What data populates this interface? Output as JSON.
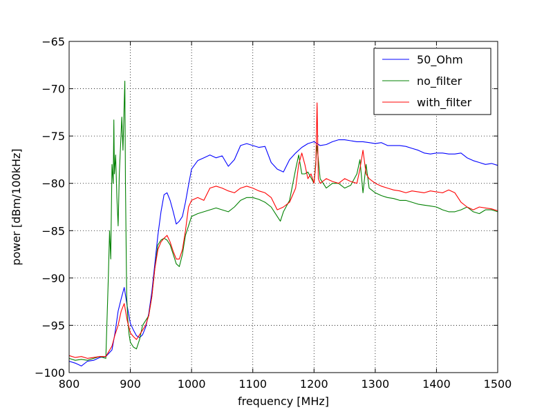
{
  "chart_data": {
    "type": "line",
    "title": "",
    "xlabel": "frequency [MHz]",
    "ylabel": "power [dBm/100kHz]",
    "xlim": [
      800,
      1500
    ],
    "ylim": [
      -100,
      -65
    ],
    "xticks": [
      800,
      900,
      1000,
      1100,
      1200,
      1300,
      1400,
      1500
    ],
    "yticks": [
      -100,
      -95,
      -90,
      -85,
      -80,
      -75,
      -70,
      -65
    ],
    "xtick_labels": [
      "800",
      "900",
      "1000",
      "1100",
      "1200",
      "1300",
      "1400",
      "1500"
    ],
    "ytick_labels": [
      "−100",
      "−95",
      "−90",
      "−85",
      "−80",
      "−75",
      "−70",
      "−65"
    ],
    "grid": true,
    "legend_position": "top-right",
    "series": [
      {
        "name": "50_Ohm",
        "color": "#0000ff",
        "x": [
          800,
          810,
          820,
          830,
          840,
          850,
          860,
          870,
          875,
          880,
          885,
          890,
          895,
          900,
          905,
          910,
          915,
          920,
          925,
          930,
          935,
          940,
          945,
          950,
          955,
          960,
          965,
          970,
          975,
          980,
          985,
          990,
          995,
          1000,
          1010,
          1020,
          1030,
          1040,
          1050,
          1060,
          1070,
          1080,
          1090,
          1100,
          1110,
          1120,
          1130,
          1140,
          1150,
          1160,
          1170,
          1180,
          1190,
          1200,
          1210,
          1220,
          1230,
          1240,
          1250,
          1260,
          1270,
          1280,
          1290,
          1300,
          1310,
          1320,
          1330,
          1340,
          1350,
          1360,
          1370,
          1380,
          1390,
          1400,
          1410,
          1420,
          1430,
          1440,
          1450,
          1460,
          1470,
          1480,
          1490,
          1500
        ],
        "values": [
          -98.8,
          -99.0,
          -99.3,
          -98.8,
          -98.7,
          -98.4,
          -98.3,
          -97.6,
          -95.8,
          -93.5,
          -92.2,
          -91.0,
          -93.0,
          -94.8,
          -95.5,
          -96.1,
          -96.3,
          -96.0,
          -95.2,
          -93.8,
          -91.5,
          -88.5,
          -85.5,
          -83.0,
          -81.2,
          -81.0,
          -81.8,
          -83.0,
          -84.3,
          -84.0,
          -83.5,
          -82.0,
          -80.2,
          -78.5,
          -77.6,
          -77.3,
          -77.0,
          -77.3,
          -77.1,
          -78.2,
          -77.5,
          -76.0,
          -75.8,
          -76.0,
          -76.2,
          -76.1,
          -77.8,
          -78.5,
          -78.8,
          -77.5,
          -76.8,
          -76.2,
          -75.8,
          -75.6,
          -76.0,
          -75.9,
          -75.6,
          -75.4,
          -75.4,
          -75.5,
          -75.6,
          -75.6,
          -75.7,
          -75.8,
          -75.7,
          -76.0,
          -76.0,
          -76.0,
          -76.1,
          -76.3,
          -76.5,
          -76.8,
          -76.9,
          -76.8,
          -76.8,
          -76.9,
          -76.9,
          -76.8,
          -77.3,
          -77.6,
          -77.8,
          -78.0,
          -77.9,
          -78.1
        ]
      },
      {
        "name": "no_filter",
        "color": "#008000",
        "x": [
          800,
          810,
          820,
          830,
          840,
          850,
          860,
          864,
          866,
          868,
          870,
          872,
          873,
          874,
          876,
          878,
          880,
          882,
          884,
          886,
          888,
          890,
          891,
          892,
          894,
          896,
          898,
          900,
          905,
          910,
          915,
          920,
          925,
          930,
          935,
          940,
          945,
          950,
          955,
          960,
          965,
          970,
          975,
          980,
          985,
          990,
          995,
          1000,
          1010,
          1020,
          1030,
          1040,
          1050,
          1060,
          1070,
          1080,
          1090,
          1100,
          1110,
          1120,
          1130,
          1140,
          1145,
          1150,
          1160,
          1170,
          1175,
          1180,
          1185,
          1190,
          1200,
          1205,
          1210,
          1220,
          1230,
          1240,
          1250,
          1260,
          1270,
          1275,
          1280,
          1285,
          1290,
          1300,
          1310,
          1320,
          1330,
          1340,
          1350,
          1360,
          1370,
          1380,
          1390,
          1400,
          1410,
          1420,
          1430,
          1440,
          1450,
          1460,
          1470,
          1480,
          1490,
          1500
        ],
        "values": [
          -98.5,
          -98.7,
          -98.6,
          -98.7,
          -98.5,
          -98.3,
          -98.5,
          -90.0,
          -85.0,
          -88.0,
          -78.0,
          -80.0,
          -73.3,
          -79.0,
          -77.0,
          -81.5,
          -84.5,
          -79.0,
          -76.0,
          -73.0,
          -76.5,
          -71.5,
          -69.2,
          -80.0,
          -92.0,
          -94.5,
          -96.0,
          -96.8,
          -97.3,
          -97.5,
          -96.5,
          -95.0,
          -94.5,
          -94.0,
          -92.0,
          -89.0,
          -86.5,
          -86.0,
          -85.8,
          -86.0,
          -86.5,
          -87.5,
          -88.5,
          -88.8,
          -87.5,
          -85.5,
          -84.5,
          -83.5,
          -83.2,
          -83.0,
          -82.8,
          -82.6,
          -82.8,
          -83.0,
          -82.5,
          -81.8,
          -81.5,
          -81.5,
          -81.7,
          -82.0,
          -82.5,
          -83.5,
          -84.0,
          -83.0,
          -81.8,
          -78.5,
          -77.0,
          -79.0,
          -79.0,
          -78.8,
          -80.0,
          -76.0,
          -79.5,
          -80.5,
          -80.0,
          -80.0,
          -80.5,
          -80.2,
          -79.0,
          -77.5,
          -81.0,
          -78.0,
          -80.5,
          -81.0,
          -81.3,
          -81.5,
          -81.6,
          -81.8,
          -81.8,
          -82.0,
          -82.2,
          -82.3,
          -82.4,
          -82.5,
          -82.8,
          -83.0,
          -83.0,
          -82.8,
          -82.5,
          -83.0,
          -83.2,
          -82.8,
          -82.8,
          -83.0
        ]
      },
      {
        "name": "with_filter",
        "color": "#ff0000",
        "x": [
          800,
          810,
          820,
          830,
          840,
          850,
          860,
          870,
          875,
          880,
          885,
          890,
          895,
          900,
          905,
          910,
          915,
          920,
          925,
          930,
          935,
          940,
          945,
          950,
          955,
          960,
          965,
          970,
          975,
          980,
          985,
          990,
          995,
          1000,
          1010,
          1020,
          1030,
          1040,
          1050,
          1060,
          1070,
          1080,
          1090,
          1100,
          1110,
          1120,
          1130,
          1140,
          1150,
          1160,
          1170,
          1175,
          1180,
          1185,
          1190,
          1195,
          1200,
          1203,
          1205,
          1207,
          1210,
          1220,
          1230,
          1240,
          1250,
          1260,
          1270,
          1275,
          1280,
          1285,
          1290,
          1300,
          1310,
          1320,
          1330,
          1340,
          1350,
          1360,
          1370,
          1380,
          1390,
          1400,
          1410,
          1420,
          1430,
          1440,
          1450,
          1460,
          1470,
          1480,
          1490,
          1500
        ],
        "values": [
          -98.2,
          -98.4,
          -98.3,
          -98.5,
          -98.4,
          -98.3,
          -98.3,
          -97.2,
          -96.0,
          -95.0,
          -93.5,
          -92.7,
          -94.5,
          -95.8,
          -96.2,
          -96.5,
          -96.0,
          -95.5,
          -95.0,
          -94.0,
          -92.0,
          -89.0,
          -87.0,
          -86.2,
          -85.8,
          -85.5,
          -86.2,
          -87.2,
          -88.0,
          -88.0,
          -87.0,
          -85.0,
          -82.5,
          -81.8,
          -81.5,
          -81.8,
          -80.5,
          -80.3,
          -80.5,
          -80.8,
          -81.0,
          -80.5,
          -80.3,
          -80.5,
          -80.8,
          -81.0,
          -81.5,
          -82.8,
          -82.5,
          -82.0,
          -80.5,
          -78.0,
          -76.8,
          -78.0,
          -79.5,
          -79.0,
          -80.0,
          -78.0,
          -71.5,
          -79.5,
          -80.0,
          -79.5,
          -79.8,
          -80.0,
          -79.5,
          -79.8,
          -80.0,
          -78.5,
          -76.5,
          -79.0,
          -79.5,
          -80.0,
          -80.3,
          -80.5,
          -80.7,
          -80.8,
          -81.0,
          -80.8,
          -80.9,
          -81.0,
          -80.8,
          -80.9,
          -81.0,
          -80.7,
          -81.0,
          -82.0,
          -82.5,
          -82.8,
          -82.5,
          -82.6,
          -82.7,
          -82.9
        ]
      }
    ]
  }
}
